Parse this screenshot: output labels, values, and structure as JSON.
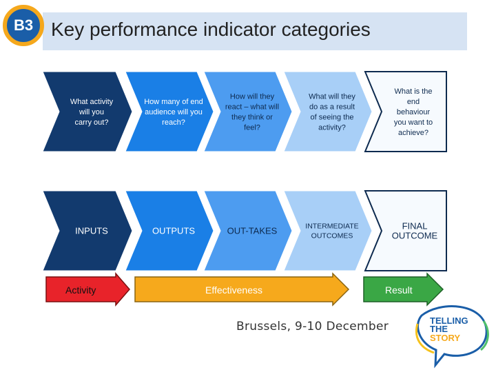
{
  "slide": {
    "badge": "B3",
    "title": "Key performance indicator categories",
    "footer": "Brussels, 9-10 December"
  },
  "questions": [
    {
      "lines": [
        "What activity",
        "will you",
        "carry out?"
      ]
    },
    {
      "lines": [
        "How many of end",
        "audience will you",
        "reach?"
      ]
    },
    {
      "lines": [
        "How will they",
        "react – what will",
        "they think or",
        "feel?"
      ]
    },
    {
      "lines": [
        "What will they",
        "do as a result",
        "of seeing the",
        "activity?"
      ]
    },
    {
      "lines": [
        "What is the",
        "end",
        "behaviour",
        "you want to",
        "achieve?"
      ]
    }
  ],
  "categories": [
    {
      "lines": [
        "INPUTS"
      ]
    },
    {
      "lines": [
        "OUTPUTS"
      ]
    },
    {
      "lines": [
        "OUT-TAKES"
      ]
    },
    {
      "lines": [
        "INTERMEDIATE",
        "OUTCOMES"
      ]
    },
    {
      "lines": [
        "FINAL",
        "OUTCOME"
      ]
    }
  ],
  "arrows": {
    "activity": "Activity",
    "effectiveness": "Effectiveness",
    "result": "Result"
  },
  "logo": {
    "line1": "TELLING",
    "line2": "THE",
    "line3": "STORY"
  },
  "colors": {
    "dark_navy": "#123a6e",
    "blue": "#1a7fe6",
    "medium_blue": "#4d9cf0",
    "light_blue": "#a8cff7",
    "pale_blue": "#dbecfc",
    "white_chevron": "#f6fafe",
    "activity_red": "#e8232a",
    "effectiveness_orange": "#f6a91c",
    "result_green": "#3aa745"
  }
}
